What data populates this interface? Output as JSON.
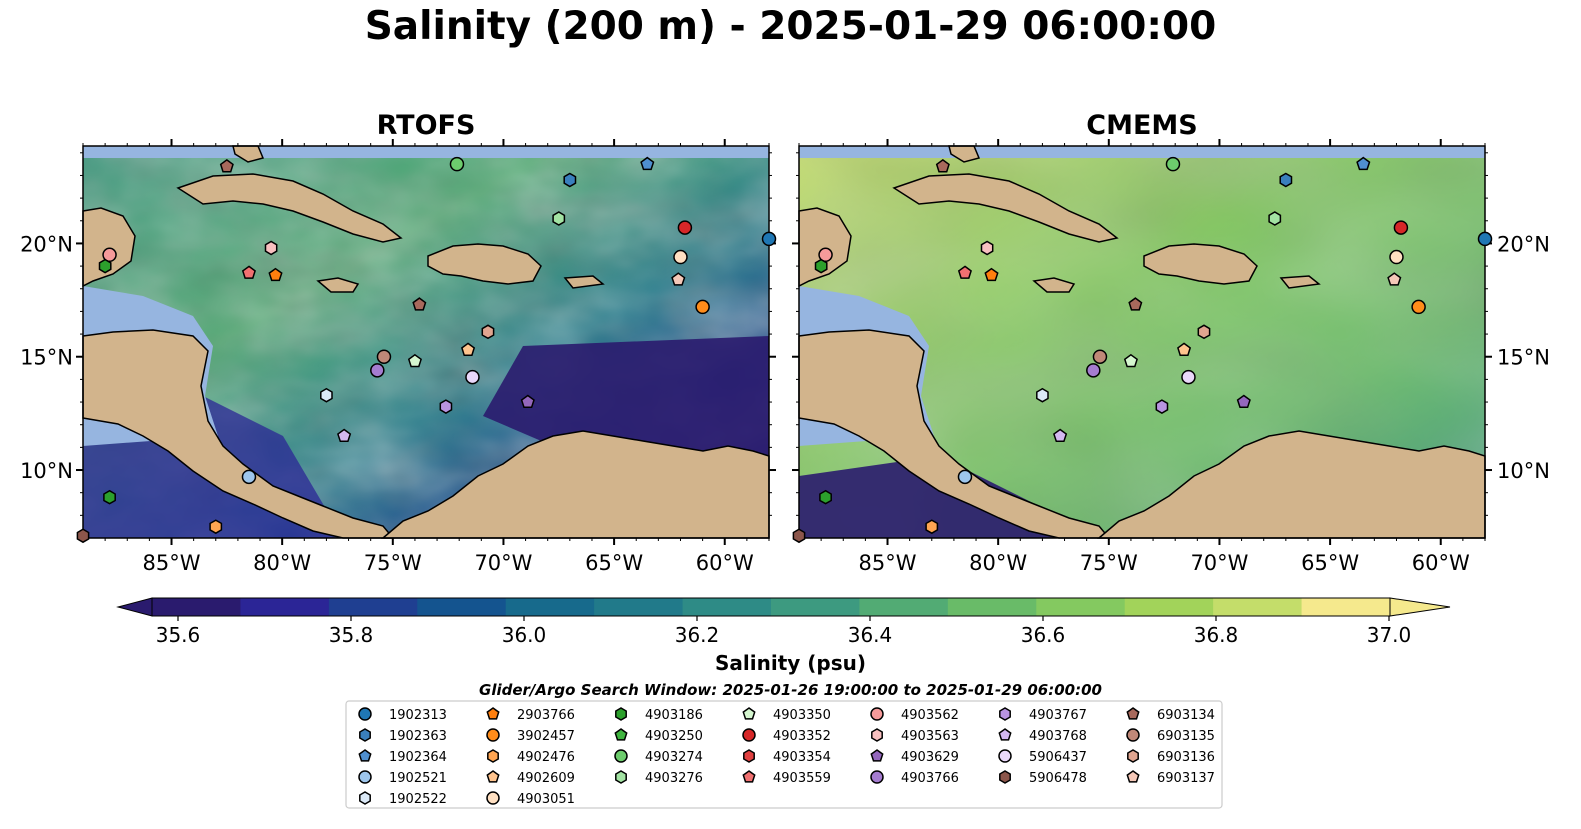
{
  "title": "Salinity (200 m) - 2025-01-29 06:00:00",
  "panels": [
    {
      "title": "RTOFS"
    },
    {
      "title": "CMEMS"
    }
  ],
  "axes": {
    "lon_ticks": [
      "85°W",
      "80°W",
      "75°W",
      "70°W",
      "65°W",
      "60°W"
    ],
    "lat_ticks": [
      "20°N",
      "15°N",
      "10°N"
    ],
    "lon_values": [
      -85,
      -80,
      -75,
      -70,
      -65,
      -60
    ],
    "lat_values": [
      20,
      15,
      10
    ],
    "lon_range": [
      -89,
      -58
    ],
    "lat_range": [
      7,
      24.3
    ]
  },
  "colorbar": {
    "label": "Salinity (psu)",
    "ticks": [
      "35.6",
      "35.8",
      "36.0",
      "36.2",
      "36.4",
      "36.6",
      "36.8",
      "37.0"
    ],
    "range": [
      35.6,
      37.0
    ],
    "extend": "both",
    "colors": [
      "#2a1b6e",
      "#2b2596",
      "#1f3f91",
      "#14548f",
      "#176a8c",
      "#217a8a",
      "#2e8b86",
      "#3d9a80",
      "#52ab74",
      "#69bb68",
      "#84c960",
      "#a2d35a",
      "#c4dd6a",
      "#f5e98d"
    ]
  },
  "legend": {
    "title": "Glider/Argo Search Window: 2025-01-26 19:00:00 to 2025-01-29 06:00:00",
    "columns": [
      [
        {
          "id": "1902313",
          "color": "#1f77b4",
          "marker": "circle"
        },
        {
          "id": "1902363",
          "color": "#3a7fbd",
          "marker": "hexagon"
        },
        {
          "id": "1902364",
          "color": "#4f8fcf",
          "marker": "pentagon"
        },
        {
          "id": "1902521",
          "color": "#9ec6ec",
          "marker": "circle"
        },
        {
          "id": "1902522",
          "color": "#dbe9f7",
          "marker": "hexagon"
        }
      ],
      [
        {
          "id": "2903766",
          "color": "#ff7f0e",
          "marker": "pentagon"
        },
        {
          "id": "3902457",
          "color": "#ff8c1a",
          "marker": "circle"
        },
        {
          "id": "4902476",
          "color": "#ffa552",
          "marker": "hexagon"
        },
        {
          "id": "4902609",
          "color": "#ffc48e",
          "marker": "pentagon"
        },
        {
          "id": "4903051",
          "color": "#ffe0c2",
          "marker": "circle"
        }
      ],
      [
        {
          "id": "4903186",
          "color": "#2ca02c",
          "marker": "hexagon"
        },
        {
          "id": "4903250",
          "color": "#3fb43f",
          "marker": "pentagon"
        },
        {
          "id": "4903274",
          "color": "#6dcc6d",
          "marker": "circle"
        },
        {
          "id": "4903276",
          "color": "#a3e3a3",
          "marker": "hexagon"
        }
      ],
      [
        {
          "id": "4903350",
          "color": "#d6f7d0",
          "marker": "pentagon"
        },
        {
          "id": "4903352",
          "color": "#d62728",
          "marker": "circle"
        },
        {
          "id": "4903354",
          "color": "#e04040",
          "marker": "hexagon"
        },
        {
          "id": "4903559",
          "color": "#f07070",
          "marker": "pentagon"
        }
      ],
      [
        {
          "id": "4903562",
          "color": "#f59a9a",
          "marker": "circle"
        },
        {
          "id": "4903563",
          "color": "#f8c0c0",
          "marker": "hexagon"
        },
        {
          "id": "4903629",
          "color": "#9467bd",
          "marker": "pentagon"
        },
        {
          "id": "4903766",
          "color": "#a57cd0",
          "marker": "circle"
        }
      ],
      [
        {
          "id": "4903767",
          "color": "#b894e0",
          "marker": "hexagon"
        },
        {
          "id": "4903768",
          "color": "#d3b8f0",
          "marker": "pentagon"
        },
        {
          "id": "5906437",
          "color": "#ead8fa",
          "marker": "circle"
        },
        {
          "id": "5906478",
          "color": "#8c564b",
          "marker": "hexagon"
        }
      ],
      [
        {
          "id": "6903134",
          "color": "#a8695c",
          "marker": "pentagon"
        },
        {
          "id": "6903135",
          "color": "#c08878",
          "marker": "circle"
        },
        {
          "id": "6903136",
          "color": "#e0a590",
          "marker": "hexagon"
        },
        {
          "id": "6903137",
          "color": "#f5c8b8",
          "marker": "pentagon"
        }
      ]
    ]
  },
  "floats": [
    {
      "id": "6903134",
      "lon": -82.5,
      "lat": 23.4
    },
    {
      "id": "4903274",
      "lon": -72.1,
      "lat": 23.5
    },
    {
      "id": "1902364",
      "lon": -63.5,
      "lat": 23.5
    },
    {
      "id": "1902363",
      "lon": -67.0,
      "lat": 22.8
    },
    {
      "id": "4903276",
      "lon": -67.5,
      "lat": 21.1
    },
    {
      "id": "4903352",
      "lon": -61.8,
      "lat": 20.7
    },
    {
      "id": "1902313",
      "lon": -58.0,
      "lat": 20.2
    },
    {
      "id": "4903562",
      "lon": -87.8,
      "lat": 19.5
    },
    {
      "id": "4903186",
      "lon": -88.0,
      "lat": 19.0
    },
    {
      "id": "4903563",
      "lon": -80.5,
      "lat": 19.8
    },
    {
      "id": "4903559",
      "lon": -81.5,
      "lat": 18.7
    },
    {
      "id": "2903766",
      "lon": -80.3,
      "lat": 18.6
    },
    {
      "id": "4903051",
      "lon": -62.0,
      "lat": 19.4
    },
    {
      "id": "6903137",
      "lon": -62.1,
      "lat": 18.4
    },
    {
      "id": "6903134",
      "lon": -73.8,
      "lat": 17.3
    },
    {
      "id": "3902457",
      "lon": -61.0,
      "lat": 17.2
    },
    {
      "id": "6903136",
      "lon": -70.7,
      "lat": 16.1
    },
    {
      "id": "6903135",
      "lon": -75.4,
      "lat": 15.0
    },
    {
      "id": "4902609",
      "lon": -71.6,
      "lat": 15.3
    },
    {
      "id": "4903766",
      "lon": -75.7,
      "lat": 14.4
    },
    {
      "id": "4903350",
      "lon": -74.0,
      "lat": 14.8
    },
    {
      "id": "5906437",
      "lon": -71.4,
      "lat": 14.1
    },
    {
      "id": "1902522",
      "lon": -78.0,
      "lat": 13.3
    },
    {
      "id": "4903767",
      "lon": -72.6,
      "lat": 12.8
    },
    {
      "id": "4903629",
      "lon": -68.9,
      "lat": 13.0
    },
    {
      "id": "4903768",
      "lon": -77.2,
      "lat": 11.5
    },
    {
      "id": "1902521",
      "lon": -81.5,
      "lat": 9.7
    },
    {
      "id": "4903186",
      "lon": -87.8,
      "lat": 8.8
    },
    {
      "id": "4902476",
      "lon": -83.0,
      "lat": 7.5
    },
    {
      "id": "5906478",
      "lon": -89.0,
      "lat": 7.1
    }
  ]
}
